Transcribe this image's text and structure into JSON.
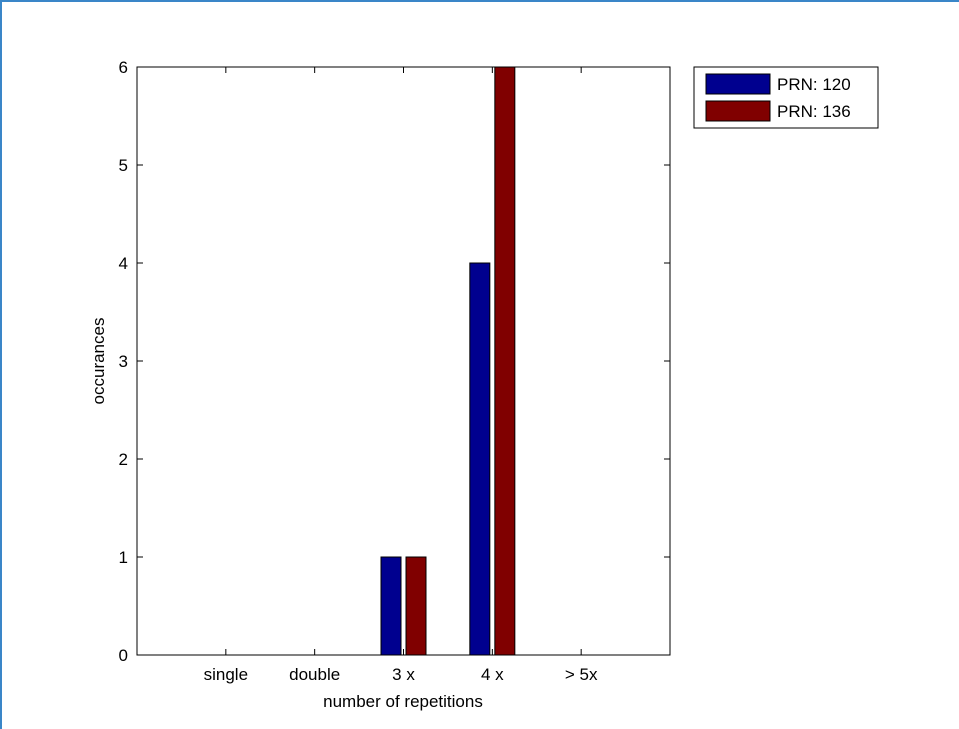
{
  "chart_data": {
    "type": "bar",
    "categories": [
      "single",
      "double",
      "3 x",
      "4 x",
      "> 5x"
    ],
    "series": [
      {
        "name": "PRN: 120",
        "color": "#00008f",
        "values": [
          0,
          0,
          1,
          4,
          0
        ]
      },
      {
        "name": "PRN: 136",
        "color": "#800000",
        "values": [
          0,
          0,
          1,
          6,
          0
        ]
      }
    ],
    "title": "",
    "xlabel": "number of repetitions",
    "ylabel": "occurances",
    "ylim": [
      0,
      6
    ],
    "yticks": [
      "0",
      "1",
      "2",
      "3",
      "4",
      "5",
      "6"
    ],
    "grid": false,
    "legend_position": "outside-top-right"
  }
}
